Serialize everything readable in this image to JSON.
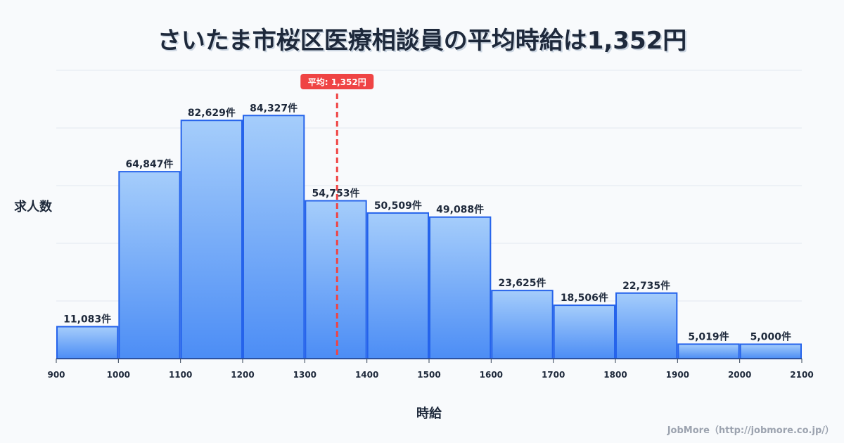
{
  "title": "さいたま市桜区医療相談員の平均時給は1,352円",
  "credit": "JobMore（http://jobmore.co.jp/）",
  "chart_data": {
    "type": "bar",
    "title": "さいたま市桜区医療相談員の平均時給は1,352円",
    "xlabel": "時給",
    "ylabel": "求人数",
    "bin_edges": [
      900,
      1000,
      1100,
      1200,
      1300,
      1400,
      1500,
      1600,
      1700,
      1800,
      1900,
      2000,
      2100
    ],
    "tick_labels": [
      "900",
      "1000",
      "1100",
      "1200",
      "1300",
      "1400",
      "1500",
      "1600",
      "1700",
      "1800",
      "1900",
      "2000",
      "2100"
    ],
    "values": [
      11083,
      64847,
      82629,
      84327,
      54753,
      50509,
      49088,
      23625,
      18506,
      22735,
      5019,
      5000
    ],
    "value_labels": [
      "11,083件",
      "64,847件",
      "82,629件",
      "84,327件",
      "54,753件",
      "50,509件",
      "49,088件",
      "23,625件",
      "18,506件",
      "22,735件",
      "5,019件",
      "5,000件"
    ],
    "xlim": [
      900,
      2100
    ],
    "ylim": [
      0,
      100000
    ],
    "grid": true,
    "mean": 1352,
    "mean_label": "平均: 1,352円",
    "colors": {
      "bar_top": "#a5cdfb",
      "bar_bottom": "#4c8df5",
      "bar_edge": "#2563eb",
      "mean": "#ef4444",
      "grid": "#e2e8f0"
    }
  }
}
